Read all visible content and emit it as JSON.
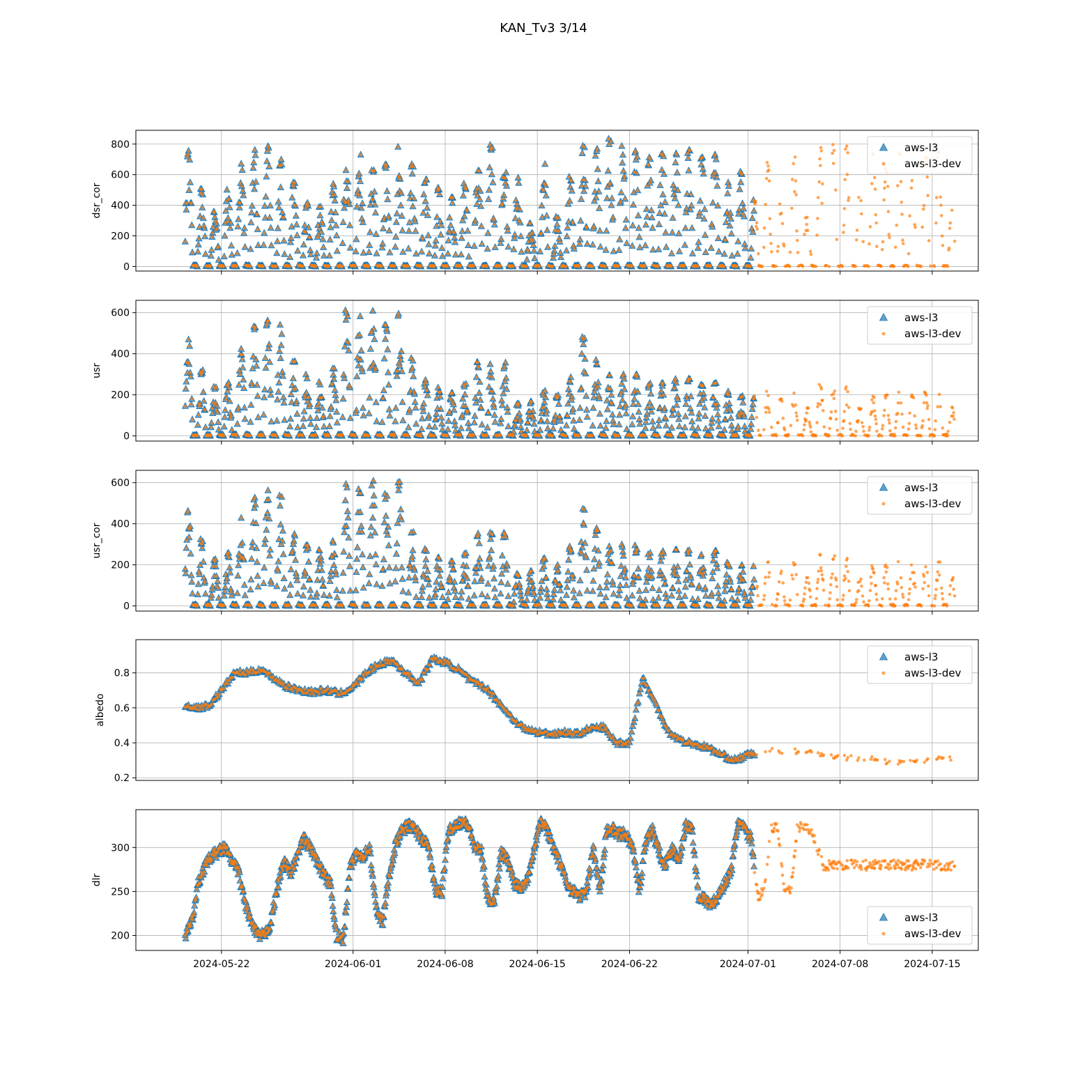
{
  "figure": {
    "title": "KAN_Tv3 3/14"
  },
  "chart_data": {
    "type": "scatter",
    "title": "KAN_Tv3 3/14",
    "x_axis": {
      "kind": "date",
      "range": [
        "2024-05-15T12:00",
        "2024-07-18T12:00"
      ],
      "ticks": [
        "2024-05-22",
        "2024-06-01",
        "2024-06-08",
        "2024-06-15",
        "2024-06-22",
        "2024-07-01",
        "2024-07-08",
        "2024-07-15"
      ]
    },
    "grid": true,
    "series_styles": [
      {
        "name": "aws-l3",
        "marker": "triangle",
        "color": "#1f77b4"
      },
      {
        "name": "aws-l3-dev",
        "marker": "dot",
        "color": "#ff7f0e"
      }
    ],
    "l3_end": "2024-07-01T12:00",
    "dev_end": "2024-07-16T18:00",
    "panels": [
      {
        "ylabel": "dsr_cor",
        "ylim": [
          -30,
          890
        ],
        "yticks": [
          0,
          200,
          400,
          600,
          800
        ],
        "legend": "top-right",
        "aws_l3_start": "2024-05-19T06:00",
        "daily_peaks": [
          770,
          530,
          370,
          540,
          690,
          790,
          800,
          700,
          560,
          420,
          400,
          550,
          800,
          800,
          640,
          680,
          810,
          670,
          570,
          520,
          460,
          560,
          800,
          800,
          810,
          600,
          290,
          700,
          330,
          620,
          800,
          780,
          850,
          810,
          790,
          720,
          790,
          760,
          770,
          740,
          760,
          560,
          640,
          450,
          680,
          420,
          740,
          410,
          800,
          810,
          820,
          470,
          780,
          650,
          810,
          620,
          760,
          790,
          380,
          600,
          740,
          760,
          200,
          820
        ],
        "notes": "diurnal shortwave cycle, values 0 at night up to daily peak"
      },
      {
        "ylabel": "usr",
        "ylim": [
          -25,
          660
        ],
        "yticks": [
          0,
          200,
          400,
          600
        ],
        "legend": "top-right",
        "aws_l3_start": "2024-05-19T06:00",
        "daily_peaks": [
          470,
          330,
          240,
          260,
          430,
          540,
          570,
          550,
          380,
          300,
          280,
          340,
          630,
          590,
          610,
          560,
          610,
          380,
          280,
          240,
          220,
          260,
          360,
          360,
          360,
          160,
          170,
          240,
          200,
          290,
          490,
          380,
          320,
          300,
          300,
          260,
          270,
          280,
          280,
          260,
          270,
          220,
          200,
          200,
          220,
          180,
          220,
          140,
          260,
          250,
          240,
          140,
          200,
          200,
          220,
          200,
          220,
          220,
          140,
          160,
          140,
          130,
          60,
          170
        ],
        "notes": "upward shortwave, 0 at night"
      },
      {
        "ylabel": "usr_cor",
        "ylim": [
          -25,
          660
        ],
        "yticks": [
          0,
          200,
          400,
          600
        ],
        "legend": "top-right",
        "aws_l3_start": "2024-05-19T06:00",
        "daily_peaks": [
          470,
          330,
          240,
          260,
          430,
          540,
          570,
          550,
          380,
          300,
          280,
          340,
          630,
          590,
          610,
          560,
          610,
          380,
          280,
          240,
          220,
          260,
          360,
          360,
          360,
          160,
          170,
          240,
          200,
          290,
          490,
          380,
          320,
          300,
          300,
          260,
          270,
          280,
          280,
          260,
          270,
          220,
          200,
          200,
          220,
          180,
          220,
          140,
          260,
          250,
          240,
          140,
          200,
          200,
          220,
          200,
          220,
          220,
          140,
          160,
          140,
          130,
          60,
          170
        ],
        "notes": "corrected upward shortwave"
      },
      {
        "ylabel": "albedo",
        "ylim": [
          0.185,
          0.99
        ],
        "yticks": [
          0.2,
          0.4,
          0.6,
          0.8
        ],
        "legend": "top-right",
        "aws_l3_start": "2024-05-19T06:00",
        "daily_mean": [
          0.62,
          0.6,
          0.61,
          0.7,
          0.8,
          0.8,
          0.82,
          0.77,
          0.72,
          0.7,
          0.69,
          0.7,
          0.68,
          0.72,
          0.8,
          0.85,
          0.87,
          0.8,
          0.74,
          0.88,
          0.86,
          0.82,
          0.75,
          0.72,
          0.64,
          0.55,
          0.48,
          0.46,
          0.45,
          0.46,
          0.45,
          0.48,
          0.49,
          0.4,
          0.4,
          0.77,
          0.62,
          0.46,
          0.41,
          0.39,
          0.37,
          0.33,
          0.3,
          0.33,
          0.35,
          0.36,
          0.35,
          0.35,
          0.34,
          0.33,
          0.32,
          0.31,
          0.31,
          0.3,
          0.28,
          0.29,
          0.3,
          0.3,
          0.31,
          0.31,
          0.3,
          0.29,
          0.33,
          0.29,
          0.27,
          0.25,
          0.26,
          0.25,
          0.27,
          0.29,
          0.3,
          0.28,
          0.3,
          0.28,
          0.26,
          0.25,
          0.25,
          0.26
        ],
        "notes": "sampled daily mean"
      },
      {
        "ylabel": "dlr",
        "ylim": [
          183,
          343
        ],
        "yticks": [
          200,
          250,
          300
        ],
        "legend": "bottom-right",
        "aws_l3_start": "2024-05-19T06:00",
        "half_daily": [
          200,
          215,
          260,
          280,
          290,
          295,
          300,
          285,
          275,
          240,
          215,
          200,
          200,
          215,
          255,
          285,
          270,
          290,
          310,
          300,
          285,
          270,
          260,
          200,
          195,
          275,
          295,
          290,
          300,
          230,
          215,
          270,
          305,
          320,
          325,
          320,
          310,
          300,
          250,
          250,
          320,
          325,
          330,
          325,
          300,
          295,
          240,
          240,
          295,
          285,
          260,
          255,
          265,
          300,
          330,
          320,
          300,
          280,
          260,
          250,
          245,
          250,
          300,
          250,
          320,
          320,
          315,
          315,
          300,
          250,
          310,
          320,
          295,
          280,
          300,
          285,
          325,
          320,
          245,
          240,
          235,
          245,
          260,
          275,
          330,
          320,
          310,
          245,
          250,
          320,
          325,
          255,
          250,
          320,
          325,
          320,
          300,
          280
        ],
        "notes": "longwave, sampled twice daily"
      }
    ]
  }
}
